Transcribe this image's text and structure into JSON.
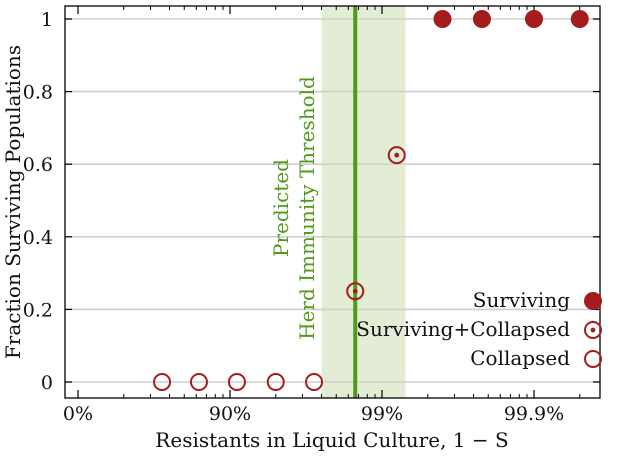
{
  "chart_data": {
    "type": "scatter",
    "xlabel": "Resistants in Liquid Culture, 1 − S",
    "ylabel": "Fraction Surviving Populations",
    "x_scale": "log(1/S)",
    "x_ticks": [
      "0%",
      "90%",
      "99%",
      "99.9%"
    ],
    "y_ticks": [
      "0",
      "0.2",
      "0.4",
      "0.6",
      "0.8",
      "1"
    ],
    "ylim": [
      0,
      1
    ],
    "grid": "horizontal",
    "legend_position": "bottom-right",
    "series": [
      {
        "name": "Collapsed",
        "marker": "open-circle",
        "color": "#a51c1c",
        "points": [
          {
            "x": "72%",
            "y": 0
          },
          {
            "x": "84%",
            "y": 0
          },
          {
            "x": "91%",
            "y": 0
          },
          {
            "x": "95%",
            "y": 0
          },
          {
            "x": "97.2%",
            "y": 0
          }
        ]
      },
      {
        "name": "Surviving+Collapsed",
        "marker": "dotted-circle",
        "color": "#a51c1c",
        "points": [
          {
            "x": "98.5%",
            "y": 0.25
          },
          {
            "x": "99.2%",
            "y": 0.625
          }
        ]
      },
      {
        "name": "Surviving",
        "marker": "filled-circle",
        "color": "#a51c1c",
        "points": [
          {
            "x": "99.6%",
            "y": 1
          },
          {
            "x": "99.78%",
            "y": 1
          },
          {
            "x": "99.9%",
            "y": 1
          },
          {
            "x": "99.95%",
            "y": 1
          }
        ]
      }
    ],
    "threshold": {
      "label_line1": "Predicted",
      "label_line2": "Herd Immunity Threshold",
      "x": "98.5%",
      "band": [
        "97.5%",
        "99.3%"
      ],
      "line_color": "#4f9a1a",
      "band_color": "#e3ecd5"
    }
  }
}
